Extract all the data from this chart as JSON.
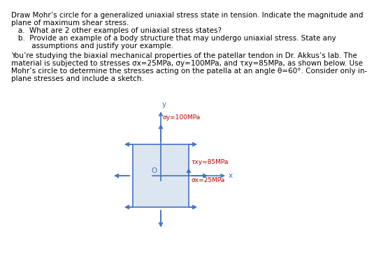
{
  "box_color": "#4472C4",
  "box_face": "#dce6f1",
  "text_color": "#000000",
  "annotation_color": "#C00000",
  "sigma_y_label": "σy=100MPa",
  "sigma_x_label": "σx=25MPa",
  "tau_xy_label": "τxy=85MPa",
  "x_label": "x",
  "y_label": "y",
  "O_label": "O",
  "bg_color": "#ffffff",
  "fontsize_body": 7.5,
  "fontsize_labels": 6.5,
  "line1": "Draw Mohr’s circle for a generalized uniaxial stress state in tension. Indicate the magnitude and",
  "line2": "plane of maximum shear stress.",
  "line_a": "   a.  What are 2 other examples of uniaxial stress states?",
  "line_b1": "   b.  Provide an example of a body structure that may undergo uniaxial stress. State any",
  "line_b2": "         assumptions and justify your example.",
  "para1": "You’re studying the biaxial mechanical properties of the patellar tendon in Dr. Akkus’s lab. The",
  "para2": "material is subjected to stresses σx=25MPa, σy=100MPa, and τxy=85MPa, as shown below. Use",
  "para3": "Mohr’s circle to determine the stresses acting on the patella at an angle θ=60°. Consider only in-",
  "para4": "plane stresses and include a sketch."
}
